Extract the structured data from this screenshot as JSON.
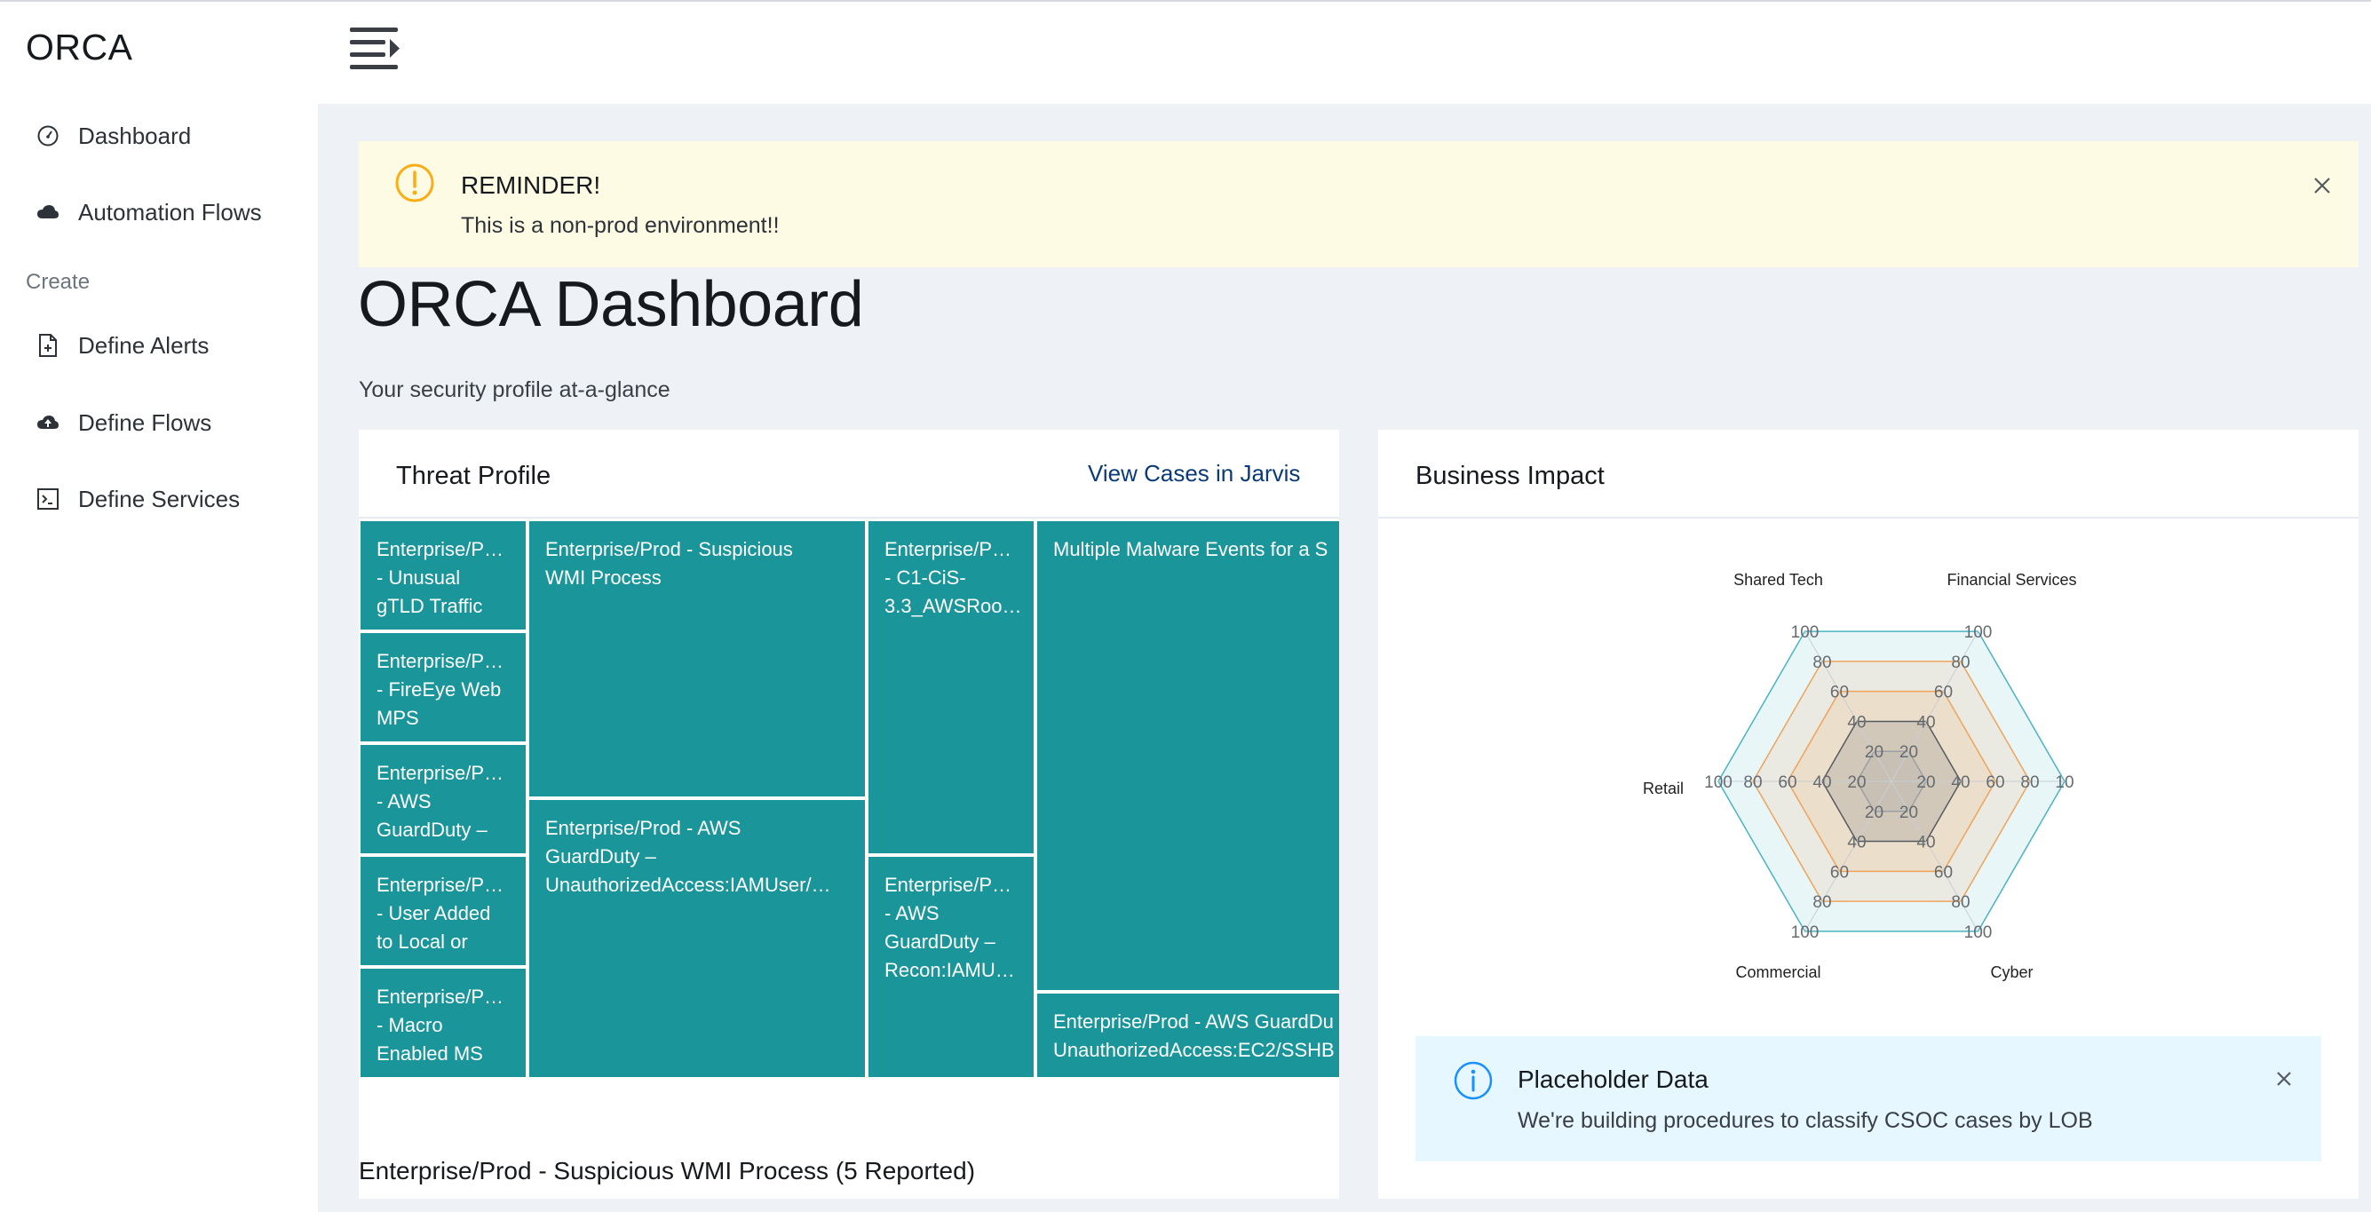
{
  "app": {
    "logo": "ORCA"
  },
  "sidebar": {
    "items": [
      {
        "label": "Dashboard",
        "icon": "dashboard-gauge-icon"
      },
      {
        "label": "Automation Flows",
        "icon": "cloud-icon"
      }
    ],
    "create_heading": "Create",
    "create_items": [
      {
        "label": "Define Alerts",
        "icon": "file-add-icon"
      },
      {
        "label": "Define Flows",
        "icon": "cloud-upload-icon"
      },
      {
        "label": "Define Services",
        "icon": "code-icon"
      }
    ]
  },
  "header": {
    "menu_icon": "menu-unfold-icon"
  },
  "alert": {
    "title": "REMINDER!",
    "message": "This is a non-prod environment!!",
    "icon": "exclamation-circle-icon",
    "color": "#faad14"
  },
  "page": {
    "title": "ORCA Dashboard",
    "subtitle": "Your security profile at-a-glance"
  },
  "threat_profile": {
    "title": "Threat Profile",
    "link": "View Cases in Jarvis",
    "tile_color": "#1a9599",
    "tiles": [
      {
        "label": "Enterprise/P…\n- Unusual\ngTLD Traffic"
      },
      {
        "label": "Enterprise/P…\n- FireEye Web\nMPS"
      },
      {
        "label": "Enterprise/P…\n- AWS\nGuardDuty –"
      },
      {
        "label": "Enterprise/P…\n- User Added\nto Local or"
      },
      {
        "label": "Enterprise/P…\n- Macro\nEnabled MS"
      },
      {
        "label": "Enterprise/Prod - Suspicious\nWMI Process"
      },
      {
        "label": "Enterprise/Prod - AWS\nGuardDuty –\nUnauthorizedAccess:IAMUser/…"
      },
      {
        "label": "Enterprise/P…\n- C1-CiS-\n3.3_AWSRoo…"
      },
      {
        "label": "Enterprise/P…\n- AWS\nGuardDuty –\nRecon:IAMU…"
      },
      {
        "label": "Multiple Malware Events for a S"
      },
      {
        "label": "Enterprise/Prod - AWS GuardDu\nUnauthorizedAccess:EC2/SSHB"
      }
    ],
    "selected_case": "Enterprise/Prod - Suspicious WMI Process (5 Reported)"
  },
  "business_impact": {
    "title": "Business Impact",
    "info": {
      "title": "Placeholder Data",
      "message": "We're building procedures to classify CSOC cases by LOB",
      "icon": "info-circle-icon",
      "color": "#1890ff"
    }
  },
  "chart_data": {
    "type": "radar",
    "axes": [
      "Shared Tech",
      "Financial Services",
      "100",
      "Cyber",
      "Commercial",
      "Retail"
    ],
    "axis_labels": [
      "Shared Tech",
      "Financial Services",
      "Cyber",
      "Commercial",
      "Retail"
    ],
    "ticks": [
      "20",
      "40",
      "60",
      "80",
      "100"
    ],
    "right_axis_tick_label": "10",
    "rlim": [
      0,
      100
    ],
    "series": [
      {
        "values": [
          100,
          100,
          100,
          100,
          100,
          100
        ],
        "color": "#4ab3c4"
      },
      {
        "values": [
          80,
          80,
          80,
          80,
          80,
          80
        ],
        "color": "#f0a35a"
      },
      {
        "values": [
          60,
          60,
          60,
          60,
          60,
          60
        ],
        "color": "#f0a35a"
      },
      {
        "values": [
          40,
          40,
          40,
          40,
          40,
          40
        ],
        "color": "#555a60"
      },
      {
        "values": [
          20,
          20,
          20,
          20,
          20,
          20
        ],
        "color": "#9aa0a6"
      }
    ]
  }
}
